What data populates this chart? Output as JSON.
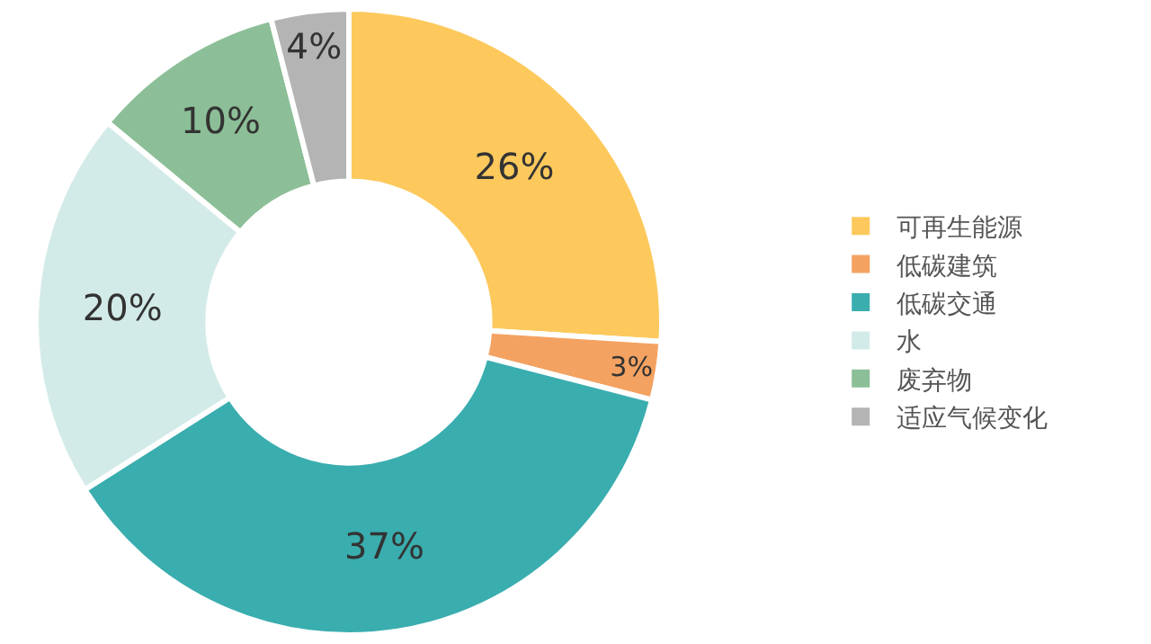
{
  "chart_data": {
    "type": "donut",
    "categories": [
      "可再生能源",
      "低碳建筑",
      "低碳交通",
      "水",
      "废弃物",
      "适应气候变化"
    ],
    "values": [
      26,
      3,
      37,
      20,
      10,
      4
    ],
    "colors": [
      "#fdc95d",
      "#f4a261",
      "#3aadaf",
      "#d3ebe8",
      "#8cbf97",
      "#b4b4b4"
    ],
    "value_labels": [
      "26%",
      "3%",
      "37%",
      "20%",
      "10%",
      "4%"
    ],
    "legend": "right"
  }
}
